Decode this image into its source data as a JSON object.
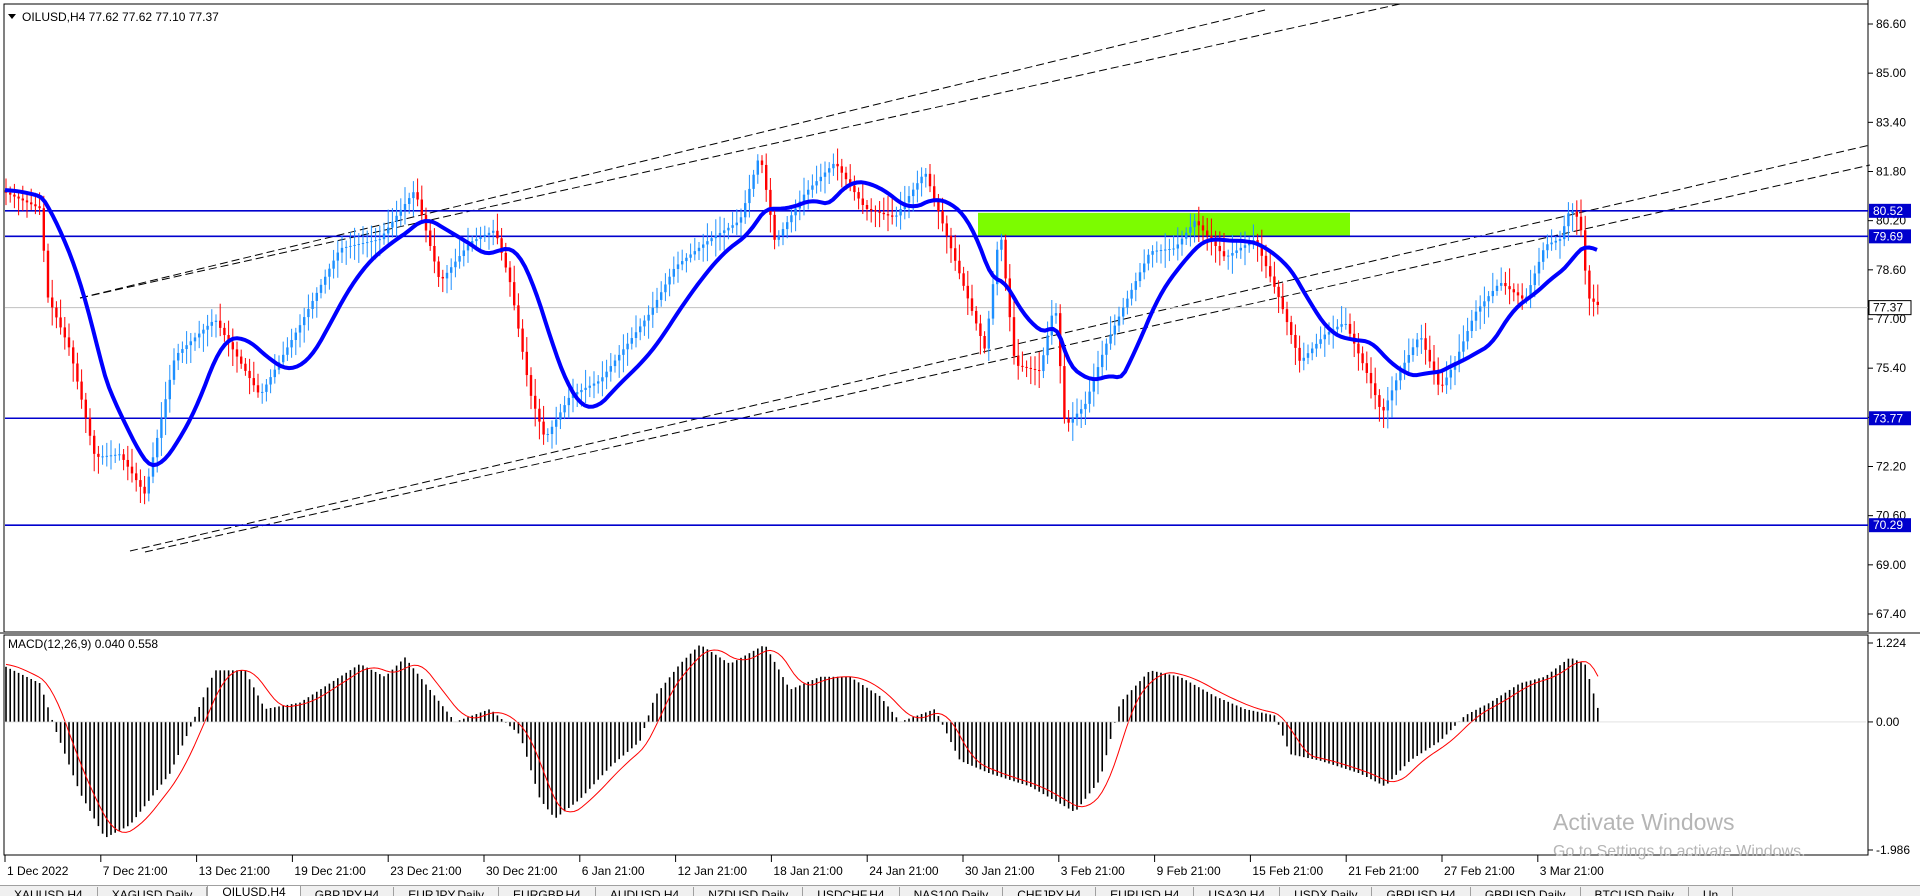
{
  "window": {
    "symbol_header": "OILUSD,H4  77.62 77.62 77.10 77.37",
    "macd_header": "MACD(12,26,9) 0.040 0.558",
    "activate_title": "Activate Windows",
    "activate_sub": "Go to Settings to activate Windows."
  },
  "price_axis": {
    "ticks": [
      "86.60",
      "85.00",
      "83.40",
      "81.80",
      "80.20",
      "78.60",
      "77.00",
      "75.40",
      "73.80",
      "72.20",
      "70.60",
      "69.00",
      "67.40"
    ]
  },
  "macd_axis": {
    "ticks": [
      "1.224",
      "0.00",
      "-1.986"
    ]
  },
  "time_axis": {
    "labels": [
      "1 Dec 2022",
      "7 Dec 21:00",
      "13 Dec 21:00",
      "19 Dec 21:00",
      "23 Dec 21:00",
      "30 Dec 21:00",
      "6 Jan 21:00",
      "12 Jan 21:00",
      "18 Jan 21:00",
      "24 Jan 21:00",
      "30 Jan 21:00",
      "3 Feb 21:00",
      "9 Feb 21:00",
      "15 Feb 21:00",
      "21 Feb 21:00",
      "27 Feb 21:00",
      "3 Mar 21:00"
    ]
  },
  "levels": [
    {
      "price": 80.52,
      "label": "80.52"
    },
    {
      "price": 79.69,
      "label": "79.69"
    },
    {
      "price": 73.77,
      "label": "73.77"
    },
    {
      "price": 70.29,
      "label": "70.29"
    }
  ],
  "current_price": {
    "price": 77.37,
    "label": "77.37"
  },
  "zone": {
    "from_price": 79.69,
    "to_price": 80.52,
    "start_date": "30 Jan",
    "end_date": "20 Feb",
    "color": "#7cfc00"
  },
  "colors": {
    "bull": "#1e90ff",
    "bear": "#ff0000",
    "ma": "#0000ff",
    "level": "#0000cd",
    "macd_hist": "#000000",
    "macd_signal": "#ff0000"
  },
  "tabs": [
    "XAUUSD,H4",
    "XAGUSD,Daily",
    "OILUSD,H4",
    "GBPJPY,H4",
    "EURJPY,Daily",
    "EURGBP,H4",
    "AUDUSD,H4",
    "NZDUSD,Daily",
    "USDCHF,H4",
    "NAS100,Daily",
    "CHFJPY,H4",
    "EURUSD,H4",
    "USA30,H4",
    "USDX,Daily",
    "GBPUSD,H4",
    "GBPUSD,Daily",
    "BTCUSD,Daily",
    "Un"
  ],
  "active_tab": 2
}
